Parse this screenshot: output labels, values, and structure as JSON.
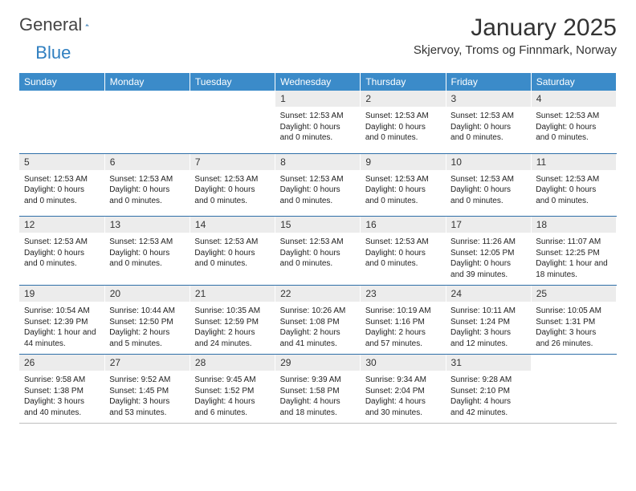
{
  "brand": {
    "part1": "General",
    "part2": "Blue"
  },
  "title": "January 2025",
  "subtitle": "Skjervoy, Troms og Finnmark, Norway",
  "colors": {
    "header_bg": "#3b8bc9",
    "header_text": "#ffffff",
    "daynum_bg": "#ececec",
    "separator": "#2f6fa8",
    "logo_accent": "#2f7fc0",
    "text": "#222222",
    "background": "#ffffff"
  },
  "typography": {
    "title_fontsize": 30,
    "subtitle_fontsize": 15,
    "header_fontsize": 12,
    "daynum_fontsize": 12,
    "cell_fontsize": 10
  },
  "days": [
    "Sunday",
    "Monday",
    "Tuesday",
    "Wednesday",
    "Thursday",
    "Friday",
    "Saturday"
  ],
  "weeks": [
    {
      "nums": [
        "",
        "",
        "",
        "1",
        "2",
        "3",
        "4"
      ],
      "cells": [
        [],
        [],
        [],
        [
          "Sunset: 12:53 AM",
          "Daylight: 0 hours and 0 minutes."
        ],
        [
          "Sunset: 12:53 AM",
          "Daylight: 0 hours and 0 minutes."
        ],
        [
          "Sunset: 12:53 AM",
          "Daylight: 0 hours and 0 minutes."
        ],
        [
          "Sunset: 12:53 AM",
          "Daylight: 0 hours and 0 minutes."
        ]
      ]
    },
    {
      "nums": [
        "5",
        "6",
        "7",
        "8",
        "9",
        "10",
        "11"
      ],
      "cells": [
        [
          "Sunset: 12:53 AM",
          "Daylight: 0 hours and 0 minutes."
        ],
        [
          "Sunset: 12:53 AM",
          "Daylight: 0 hours and 0 minutes."
        ],
        [
          "Sunset: 12:53 AM",
          "Daylight: 0 hours and 0 minutes."
        ],
        [
          "Sunset: 12:53 AM",
          "Daylight: 0 hours and 0 minutes."
        ],
        [
          "Sunset: 12:53 AM",
          "Daylight: 0 hours and 0 minutes."
        ],
        [
          "Sunset: 12:53 AM",
          "Daylight: 0 hours and 0 minutes."
        ],
        [
          "Sunset: 12:53 AM",
          "Daylight: 0 hours and 0 minutes."
        ]
      ]
    },
    {
      "nums": [
        "12",
        "13",
        "14",
        "15",
        "16",
        "17",
        "18"
      ],
      "cells": [
        [
          "Sunset: 12:53 AM",
          "Daylight: 0 hours and 0 minutes."
        ],
        [
          "Sunset: 12:53 AM",
          "Daylight: 0 hours and 0 minutes."
        ],
        [
          "Sunset: 12:53 AM",
          "Daylight: 0 hours and 0 minutes."
        ],
        [
          "Sunset: 12:53 AM",
          "Daylight: 0 hours and 0 minutes."
        ],
        [
          "Sunset: 12:53 AM",
          "Daylight: 0 hours and 0 minutes."
        ],
        [
          "Sunrise: 11:26 AM",
          "Sunset: 12:05 PM",
          "Daylight: 0 hours and 39 minutes."
        ],
        [
          "Sunrise: 11:07 AM",
          "Sunset: 12:25 PM",
          "Daylight: 1 hour and 18 minutes."
        ]
      ]
    },
    {
      "nums": [
        "19",
        "20",
        "21",
        "22",
        "23",
        "24",
        "25"
      ],
      "cells": [
        [
          "Sunrise: 10:54 AM",
          "Sunset: 12:39 PM",
          "Daylight: 1 hour and 44 minutes."
        ],
        [
          "Sunrise: 10:44 AM",
          "Sunset: 12:50 PM",
          "Daylight: 2 hours and 5 minutes."
        ],
        [
          "Sunrise: 10:35 AM",
          "Sunset: 12:59 PM",
          "Daylight: 2 hours and 24 minutes."
        ],
        [
          "Sunrise: 10:26 AM",
          "Sunset: 1:08 PM",
          "Daylight: 2 hours and 41 minutes."
        ],
        [
          "Sunrise: 10:19 AM",
          "Sunset: 1:16 PM",
          "Daylight: 2 hours and 57 minutes."
        ],
        [
          "Sunrise: 10:11 AM",
          "Sunset: 1:24 PM",
          "Daylight: 3 hours and 12 minutes."
        ],
        [
          "Sunrise: 10:05 AM",
          "Sunset: 1:31 PM",
          "Daylight: 3 hours and 26 minutes."
        ]
      ]
    },
    {
      "nums": [
        "26",
        "27",
        "28",
        "29",
        "30",
        "31",
        ""
      ],
      "cells": [
        [
          "Sunrise: 9:58 AM",
          "Sunset: 1:38 PM",
          "Daylight: 3 hours and 40 minutes."
        ],
        [
          "Sunrise: 9:52 AM",
          "Sunset: 1:45 PM",
          "Daylight: 3 hours and 53 minutes."
        ],
        [
          "Sunrise: 9:45 AM",
          "Sunset: 1:52 PM",
          "Daylight: 4 hours and 6 minutes."
        ],
        [
          "Sunrise: 9:39 AM",
          "Sunset: 1:58 PM",
          "Daylight: 4 hours and 18 minutes."
        ],
        [
          "Sunrise: 9:34 AM",
          "Sunset: 2:04 PM",
          "Daylight: 4 hours and 30 minutes."
        ],
        [
          "Sunrise: 9:28 AM",
          "Sunset: 2:10 PM",
          "Daylight: 4 hours and 42 minutes."
        ],
        []
      ]
    }
  ]
}
